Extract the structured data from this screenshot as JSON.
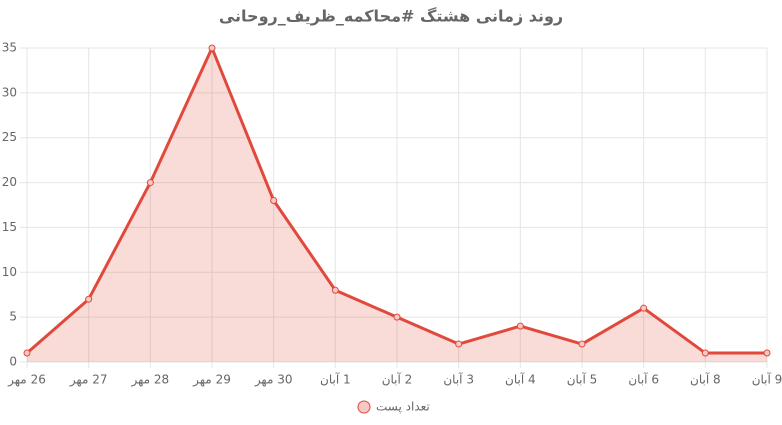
{
  "chart_data": {
    "type": "line",
    "title": "روند زمانی هشتگ #محاکمه_ظریف_روحانی",
    "categories": [
      "26 مهر",
      "27 مهر",
      "28 مهر",
      "29 مهر",
      "30 مهر",
      "1 آبان",
      "2 آبان",
      "3 آبان",
      "4 آبان",
      "5 آبان",
      "6 آبان",
      "8 آبان",
      "9 آبان"
    ],
    "series": [
      {
        "name": "تعداد پست",
        "color": "#e0493c",
        "values": [
          1,
          7,
          20,
          35,
          18,
          8,
          5,
          2,
          4,
          2,
          6,
          1,
          1
        ]
      }
    ],
    "ylim": [
      0,
      35
    ],
    "yticks": [
      0,
      5,
      10,
      15,
      20,
      25,
      30,
      35
    ],
    "grid": true,
    "fill": true,
    "legend": "bottom"
  }
}
